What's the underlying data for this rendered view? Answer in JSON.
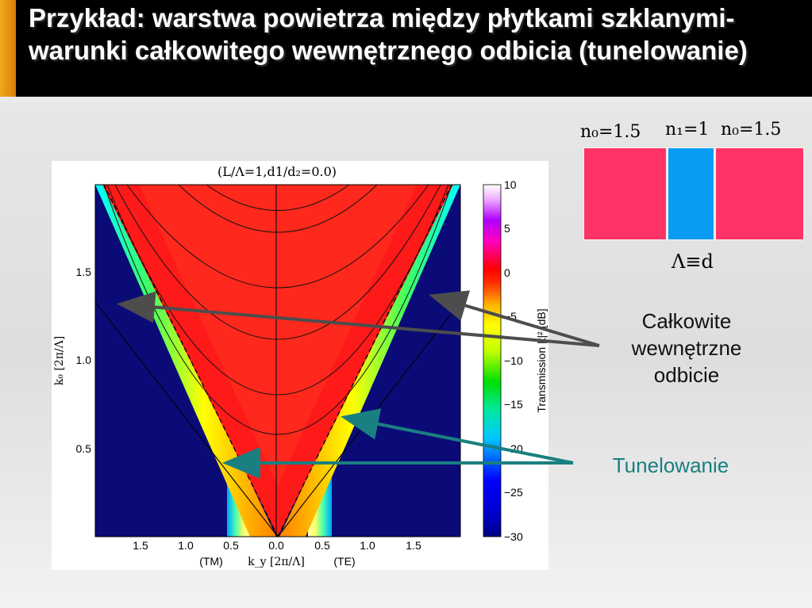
{
  "title": "Przykład: warstwa powietrza między płytkami szklanymi- warunki całkowitego wewnętrznego odbicia (tunelowanie)",
  "plot": {
    "heading": "(L/Λ=1,d1/d₂=0.0)",
    "x_tick_labels": [
      "1.5",
      "1.0",
      "0.5",
      "0.0",
      "0.5",
      "1.0",
      "1.5"
    ],
    "y_tick_labels": [
      "0.5",
      "1.0",
      "1.5"
    ],
    "x_axis_label": "k_y [2π/Λ]",
    "x_left_tag": "(TM)",
    "x_right_tag": "(TE)",
    "y_axis_label": "k₀ [2π/Λ]",
    "colorbar_label": "Transmission |t|² [dB]",
    "colorbar_ticks": [
      "10",
      "5",
      "0",
      "−5",
      "−10",
      "−15",
      "−20",
      "−25",
      "−30"
    ],
    "colors": {
      "forbidden": "#0b0b78",
      "transmission": "#ff1a1a"
    }
  },
  "chart_data": {
    "type": "heatmap",
    "title": "(L/Λ=1,d1/d₂=0.0)",
    "xlabel": "k_y [2π/Λ]",
    "ylabel": "k₀ [2π/Λ]",
    "xlim": [
      -2.0,
      2.0
    ],
    "ylim": [
      0.0,
      2.0
    ],
    "x_ticks": [
      -1.5,
      -1.0,
      -0.5,
      0.0,
      0.5,
      1.0,
      1.5
    ],
    "y_ticks": [
      0.5,
      1.0,
      1.5
    ],
    "colorbar": {
      "label": "Transmission |t|² [dB]",
      "range": [
        -30,
        10
      ],
      "ticks": [
        10,
        5,
        0,
        -5,
        -10,
        -15,
        -20,
        -25,
        -30
      ]
    },
    "light_line_n1": {
      "slope": 1.0,
      "style": "dashed"
    },
    "light_line_n0": {
      "slope": 0.6667,
      "style": "solid"
    },
    "band_minima_k0": [
      0.5,
      1.0,
      1.5
    ]
  },
  "schematic": {
    "n0_left": "n₀=1.5",
    "n1": "n₁=1",
    "n0_right": "n₀=1.5",
    "period_label": "Λ≡d",
    "colors": {
      "glass": "#ff3366",
      "air": "#0a9cf5"
    }
  },
  "callouts": {
    "tir": "Całkowite wewnętrzne odbicie",
    "tunnel": "Tunelowanie",
    "colors": {
      "tir": "#4d4d4d",
      "tunnel": "#1a7f80"
    }
  }
}
